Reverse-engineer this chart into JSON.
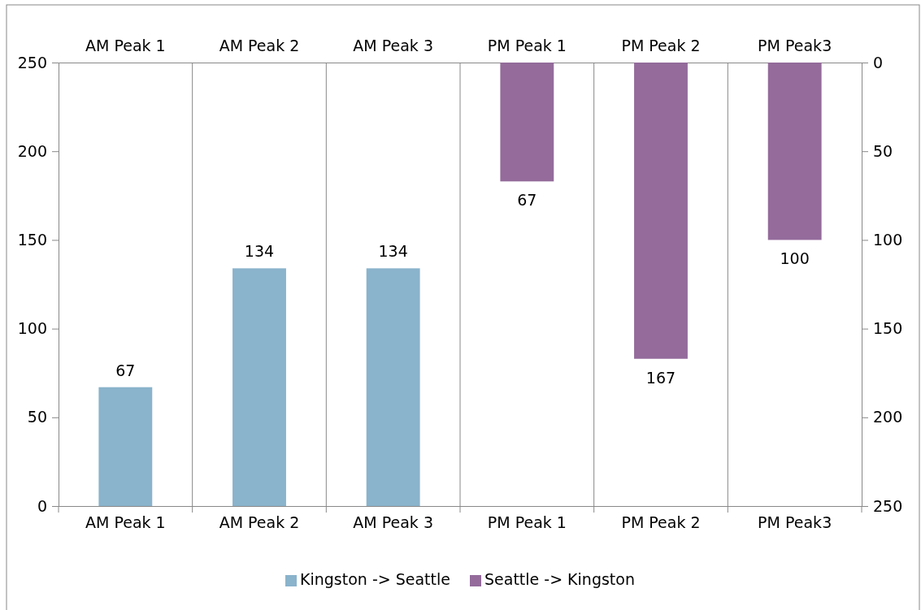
{
  "chart_data": {
    "type": "bar",
    "categories": [
      "AM Peak 1",
      "AM Peak 2",
      "AM Peak 3",
      "PM Peak 1",
      "PM Peak 2",
      "PM Peak3"
    ],
    "series": [
      {
        "name": "Kingston -> Seattle",
        "color": "#8ab3cc",
        "values": [
          67,
          134,
          134,
          null,
          null,
          null
        ]
      },
      {
        "name": "Seattle -> Kingston",
        "color": "#946b9b",
        "axis": "y2",
        "values": [
          null,
          null,
          null,
          67,
          167,
          100
        ]
      }
    ],
    "ylim": [
      0,
      250
    ],
    "yticks": [
      0,
      50,
      100,
      150,
      200,
      250
    ],
    "y2lim": [
      250,
      0
    ],
    "y2ticks": [
      0,
      50,
      100,
      150,
      200,
      250
    ],
    "grid": "x",
    "data_labels": true,
    "legend": "bottom"
  }
}
